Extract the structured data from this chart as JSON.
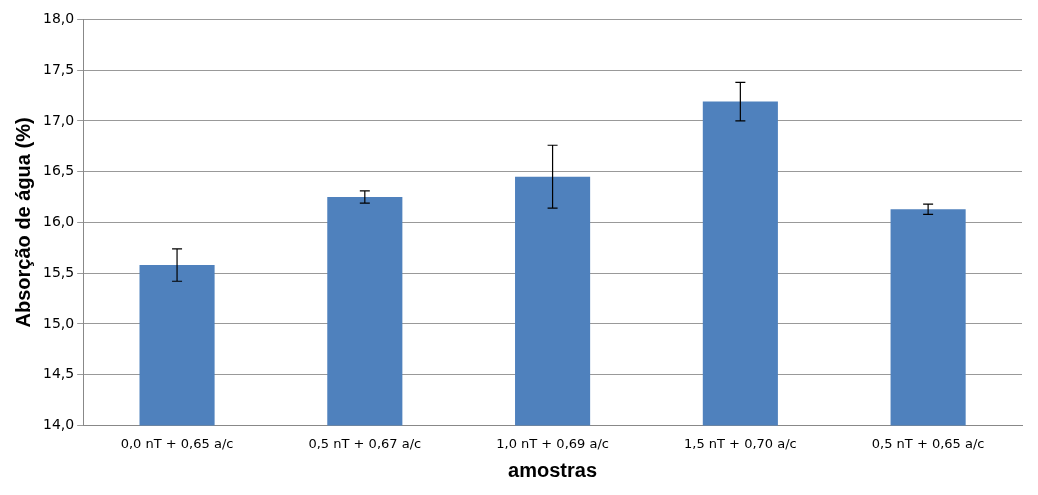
{
  "chart_data": {
    "type": "bar",
    "xlabel": "amostras",
    "ylabel": "Absorção de água (%)",
    "categories": [
      "0,0 nT + 0,65 a/c",
      "0,5 nT + 0,67 a/c",
      "1,0 nT + 0,69 a/c",
      "1,5 nT + 0,70 a/c",
      "0,5 nT + 0,65 a/c"
    ],
    "values": [
      15.58,
      16.25,
      16.45,
      17.19,
      16.13
    ],
    "errors": [
      0.16,
      0.06,
      0.31,
      0.19,
      0.05
    ],
    "color": "#4f81bd",
    "ylim": [
      14,
      18
    ],
    "yticks": [
      {
        "value": 14,
        "label": "14,0"
      },
      {
        "value": 14.5,
        "label": "14,5"
      },
      {
        "value": 15,
        "label": "15,0"
      },
      {
        "value": 15.5,
        "label": "15,5"
      },
      {
        "value": 16,
        "label": "16,0"
      },
      {
        "value": 16.5,
        "label": "16,5"
      },
      {
        "value": 17,
        "label": "17,0"
      },
      {
        "value": 17.5,
        "label": "17,5"
      },
      {
        "value": 18,
        "label": "18,0"
      }
    ],
    "grid": "y",
    "legend": false
  }
}
